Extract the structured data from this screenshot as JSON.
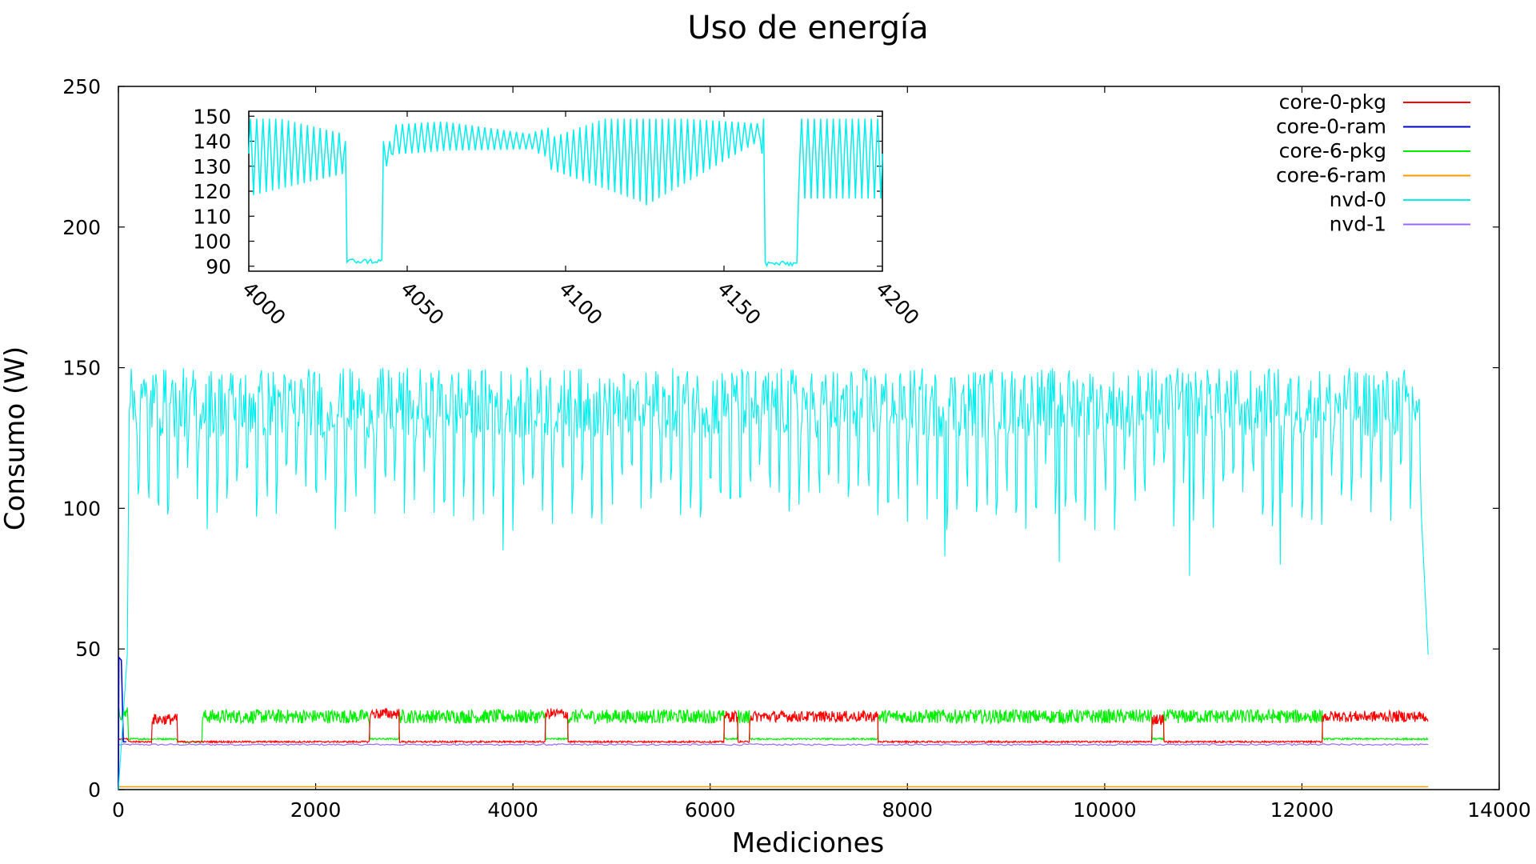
{
  "chart_data": [
    {
      "type": "line",
      "title": "Uso de energía",
      "xlabel": "Mediciones",
      "ylabel": "Consumo (W)",
      "xlim": [
        0,
        14000
      ],
      "ylim": [
        0,
        250
      ],
      "x_ticks": [
        "0",
        "2000",
        "4000",
        "6000",
        "8000",
        "10000",
        "12000",
        "14000"
      ],
      "y_ticks": [
        "0",
        "50",
        "100",
        "150",
        "200",
        "250"
      ],
      "grid": false,
      "legend_position": "top-right",
      "x_end": 13280,
      "series": [
        {
          "name": "core-0-pkg",
          "color": "#ff0000",
          "description_of_values": "alternates between ~17 W (low) and ~24-28 W (high) phases",
          "phases": [
            {
              "start": 0,
              "end": 100,
              "value": 18
            },
            {
              "start": 100,
              "end": 340,
              "value": 17
            },
            {
              "start": 340,
              "end": 600,
              "value": 25
            },
            {
              "start": 600,
              "end": 850,
              "value": 17
            },
            {
              "start": 850,
              "end": 2550,
              "value": 17
            },
            {
              "start": 2550,
              "end": 2850,
              "value": 27
            },
            {
              "start": 2850,
              "end": 4330,
              "value": 17
            },
            {
              "start": 4330,
              "end": 4560,
              "value": 27
            },
            {
              "start": 4560,
              "end": 6140,
              "value": 17
            },
            {
              "start": 6140,
              "end": 6280,
              "value": 26
            },
            {
              "start": 6280,
              "end": 6400,
              "value": 17
            },
            {
              "start": 6400,
              "end": 7700,
              "value": 26
            },
            {
              "start": 7700,
              "end": 10480,
              "value": 17
            },
            {
              "start": 10480,
              "end": 10600,
              "value": 25
            },
            {
              "start": 10600,
              "end": 12210,
              "value": 17
            },
            {
              "start": 12210,
              "end": 13280,
              "value": 26
            }
          ]
        },
        {
          "name": "core-0-ram",
          "color": "#0000cc",
          "phases": [
            {
              "start": 0,
              "end": 60,
              "value": 47
            },
            {
              "start": 60,
              "end": 13280,
              "value": 1
            }
          ]
        },
        {
          "name": "core-6-pkg",
          "color": "#00ee00",
          "phases": [
            {
              "start": 0,
              "end": 100,
              "value": 27
            },
            {
              "start": 100,
              "end": 340,
              "value": 18
            },
            {
              "start": 340,
              "end": 600,
              "value": 18
            },
            {
              "start": 600,
              "end": 850,
              "value": 17
            },
            {
              "start": 850,
              "end": 2550,
              "value": 26
            },
            {
              "start": 2550,
              "end": 2850,
              "value": 18
            },
            {
              "start": 2850,
              "end": 4330,
              "value": 26
            },
            {
              "start": 4330,
              "end": 4560,
              "value": 18
            },
            {
              "start": 4560,
              "end": 6140,
              "value": 26
            },
            {
              "start": 6140,
              "end": 6280,
              "value": 18
            },
            {
              "start": 6280,
              "end": 6400,
              "value": 26
            },
            {
              "start": 6400,
              "end": 7700,
              "value": 18
            },
            {
              "start": 7700,
              "end": 10480,
              "value": 26
            },
            {
              "start": 10480,
              "end": 10600,
              "value": 18
            },
            {
              "start": 10600,
              "end": 12210,
              "value": 26
            },
            {
              "start": 12210,
              "end": 13280,
              "value": 18
            }
          ]
        },
        {
          "name": "core-6-ram",
          "color": "#ff9900",
          "phases": [
            {
              "start": 0,
              "end": 13280,
              "value": 1
            }
          ]
        },
        {
          "name": "nvd-0",
          "color": "#00eeee",
          "description_of_values": "oscillates ~92-150 W from x≈100 to x≈13200, ramps from 0 at start, drops to ~98 then ~48 at end",
          "range_main": [
            92,
            150
          ],
          "dips_notable": [
            {
              "x": 3900,
              "value": 85
            },
            {
              "x": 8380,
              "value": 83
            },
            {
              "x": 9540,
              "value": 81
            },
            {
              "x": 10860,
              "value": 76
            },
            {
              "x": 11780,
              "value": 80
            }
          ],
          "end_values": [
            {
              "x": 13210,
              "value": 98
            },
            {
              "x": 13280,
              "value": 48
            }
          ]
        },
        {
          "name": "nvd-1",
          "color": "#9966ff",
          "phases": [
            {
              "start": 0,
              "end": 13280,
              "value": 16
            }
          ]
        }
      ]
    },
    {
      "type": "line",
      "title": "",
      "xlim": [
        4000,
        4200
      ],
      "ylim": [
        88,
        152
      ],
      "x_ticks": [
        "4000",
        "4050",
        "4100",
        "4150",
        "4200"
      ],
      "y_ticks": [
        "90",
        "100",
        "110",
        "120",
        "130",
        "140",
        "150"
      ],
      "series": [
        {
          "name": "nvd-0",
          "color": "#00eeee",
          "description_of_values": "zoom of nvd-0: oscillating ~100-150 W, deep plateaus ~92 W at x≈4031-4042 and x≈4163-4173",
          "low_plateaus": [
            {
              "start": 4031,
              "end": 4042,
              "value": 92
            },
            {
              "start": 4163,
              "end": 4173,
              "value": 91
            }
          ]
        }
      ]
    }
  ]
}
